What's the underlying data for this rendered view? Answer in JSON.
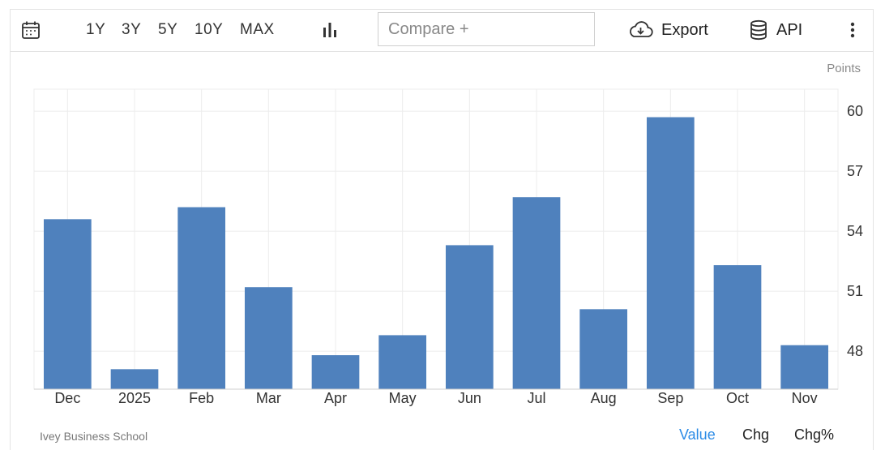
{
  "toolbar": {
    "calendar_icon": "calendar-icon",
    "ranges": [
      "1Y",
      "3Y",
      "5Y",
      "10Y",
      "MAX"
    ],
    "chart_type_icon": "bar-chart-icon",
    "compare_placeholder": "Compare +",
    "export_label": "Export",
    "export_icon": "cloud-download-icon",
    "api_label": "API",
    "api_icon": "database-icon",
    "more_icon": "vertical-dots-icon"
  },
  "units_label": "Points",
  "source": "Ivey Business School",
  "tabs": {
    "value": "Value",
    "chg": "Chg",
    "chg_pct": "Chg%",
    "active": "Value"
  },
  "colors": {
    "bar": "#4f81bd",
    "active_tab": "#2b8be6",
    "grid": "#ececec"
  },
  "chart_data": {
    "type": "bar",
    "categories": [
      "Dec",
      "2025",
      "Feb",
      "Mar",
      "Apr",
      "May",
      "Jun",
      "Jul",
      "Aug",
      "Sep",
      "Oct",
      "Nov"
    ],
    "values": [
      54.6,
      47.1,
      55.2,
      51.2,
      47.8,
      48.8,
      53.3,
      55.7,
      50.1,
      59.7,
      52.3,
      48.3
    ],
    "ylim": [
      46.1,
      61.1
    ],
    "yticks": [
      48,
      51,
      54,
      57,
      60
    ],
    "ylabel": "Points",
    "grid": true,
    "axis_side": "right"
  }
}
